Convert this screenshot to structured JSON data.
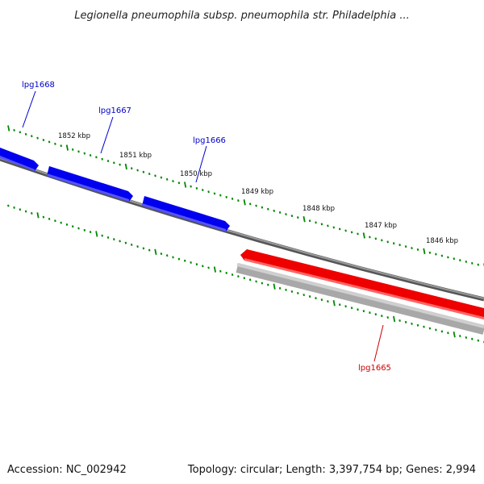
{
  "title": "Legionella pneumophila subsp. pneumophila str. Philadelphia ...",
  "footer": {
    "accession": "Accession: NC_002942",
    "summary": "Topology: circular; Length: 3,397,754 bp; Genes: 2,994"
  },
  "colors": {
    "forward_gene": "#0000ee",
    "reverse_gene": "#ee0000",
    "backbone": "#777777",
    "reverse_strand_band": "#b8b8b8",
    "tick": "#008800",
    "label_forward": "#0000cc",
    "label_reverse": "#cc0000"
  },
  "scale_labels": [
    "1852 kbp",
    "1851 kbp",
    "1850 kbp",
    "1849 kbp",
    "1848 kbp",
    "1847 kbp",
    "1846 kbp"
  ],
  "genes": [
    {
      "name": "lpg1668",
      "strand": "forward"
    },
    {
      "name": "lpg1667",
      "strand": "forward"
    },
    {
      "name": "lpg1666",
      "strand": "forward"
    },
    {
      "name": "lpg1665",
      "strand": "reverse"
    }
  ]
}
